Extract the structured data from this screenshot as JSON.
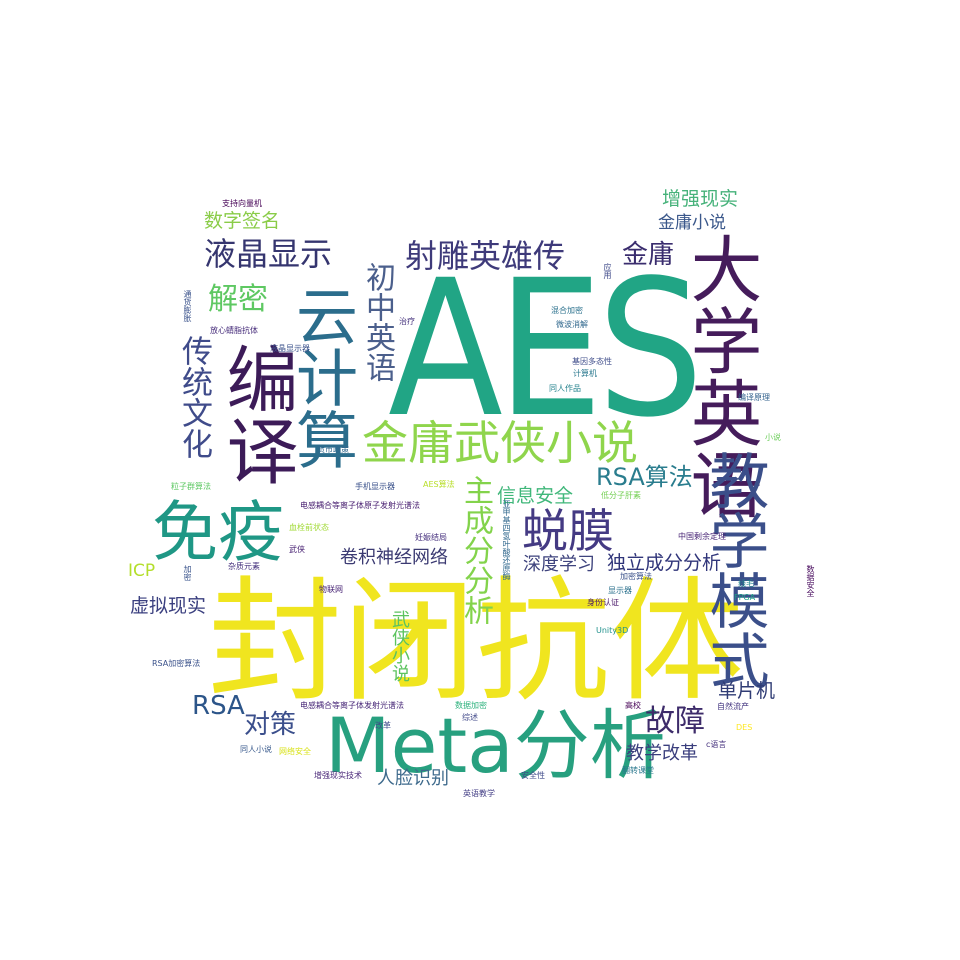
{
  "words": [
    {
      "text": "AES",
      "color": "#21a585"
    },
    {
      "text": "封闭抗体",
      "color": "#f0e51f"
    },
    {
      "text": "Meta分析",
      "color": "#27a07f"
    },
    {
      "text": "大学英语",
      "color": "#451c5b"
    },
    {
      "text": "教学模式",
      "color": "#3b4f8a"
    },
    {
      "text": "编译",
      "color": "#3c1b58"
    },
    {
      "text": "云计算",
      "color": "#2b6d8c"
    },
    {
      "text": "免疫",
      "color": "#1f9785"
    },
    {
      "text": "金庸武侠小说",
      "color": "#8fd54c"
    },
    {
      "text": "蜕膜",
      "color": "#443a83"
    },
    {
      "text": "射雕英雄传",
      "color": "#3e3a7a"
    },
    {
      "text": "液晶显示",
      "color": "#35356f"
    },
    {
      "text": "传统文化",
      "color": "#3f4b8a"
    },
    {
      "text": "初中英语",
      "color": "#4b5f8c"
    },
    {
      "text": "解密",
      "color": "#5ec862"
    },
    {
      "text": "主成分分析",
      "color": "#83d34b"
    },
    {
      "text": "故障",
      "color": "#3d2b6a"
    },
    {
      "text": "对策",
      "color": "#3b4f8c"
    },
    {
      "text": "RSA算法",
      "color": "#2a7d8e"
    },
    {
      "text": "金庸",
      "color": "#3a2d6e"
    },
    {
      "text": "增强现实",
      "color": "#46b27a"
    },
    {
      "text": "金庸小说",
      "color": "#3b588b"
    },
    {
      "text": "数字签名",
      "color": "#8acc48"
    },
    {
      "text": "RSA",
      "color": "#2c5589"
    },
    {
      "text": "卷积神经网络",
      "color": "#3b3a72"
    },
    {
      "text": "深度学习",
      "color": "#3e437d"
    },
    {
      "text": "独立成分分析",
      "color": "#30357a"
    },
    {
      "text": "信息安全",
      "color": "#40b77a"
    },
    {
      "text": "武侠小说",
      "color": "#5cc35f"
    },
    {
      "text": "虚拟现实",
      "color": "#3a3f7f"
    },
    {
      "text": "ICP",
      "color": "#b4de2c"
    },
    {
      "text": "单片机",
      "color": "#2f3b74"
    },
    {
      "text": "教学改革",
      "color": "#3a3e7d"
    },
    {
      "text": "人脸识别",
      "color": "#3e6a8c"
    },
    {
      "text": "支持向量机",
      "color": "#440154"
    },
    {
      "text": "通货膨胀",
      "color": "#3a528b"
    },
    {
      "text": "放心蜻脂抗体",
      "color": "#472d7b"
    },
    {
      "text": "液晶显示器",
      "color": "#3b528b"
    },
    {
      "text": "应用",
      "color": "#3e4989"
    },
    {
      "text": "混合加密",
      "color": "#2c728e"
    },
    {
      "text": "微波消解",
      "color": "#31688e"
    },
    {
      "text": "治疗",
      "color": "#46337e"
    },
    {
      "text": "基因多态性",
      "color": "#3e4c8a"
    },
    {
      "text": "计算机",
      "color": "#2a788e"
    },
    {
      "text": "同人作品",
      "color": "#25838e"
    },
    {
      "text": "编译原理",
      "color": "#33628d"
    },
    {
      "text": "货币政策",
      "color": "#31688e"
    },
    {
      "text": "小说",
      "color": "#6ccd5a"
    },
    {
      "text": "粒子群算法",
      "color": "#5dc863"
    },
    {
      "text": "手机显示器",
      "color": "#3b528b"
    },
    {
      "text": "AES算法",
      "color": "#b8de29"
    },
    {
      "text": "电感耦合等离子体原子发射光谱法",
      "color": "#481f70"
    },
    {
      "text": "低分子肝素",
      "color": "#75d054"
    },
    {
      "text": "血栓前状态",
      "color": "#a2da37"
    },
    {
      "text": "妊娠结局",
      "color": "#46307e"
    },
    {
      "text": "亚甲基四氢叶酸还原酶",
      "color": "#31688e"
    },
    {
      "text": "中国剩余定理",
      "color": "#482576"
    },
    {
      "text": "武侠",
      "color": "#482173"
    },
    {
      "text": "加密",
      "color": "#3a548c"
    },
    {
      "text": "杂质元素",
      "color": "#46337e"
    },
    {
      "text": "加密算法",
      "color": "#3b528b"
    },
    {
      "text": "线毛",
      "color": "#25858e"
    },
    {
      "text": "物联网",
      "color": "#482475"
    },
    {
      "text": "显示器",
      "color": "#2c728e"
    },
    {
      "text": "数据安全",
      "color": "#46085c"
    },
    {
      "text": "身份认证",
      "color": "#481668"
    },
    {
      "text": "FPGA",
      "color": "#1fa188"
    },
    {
      "text": "Unity3D",
      "color": "#21918c"
    },
    {
      "text": "RSA加密算法",
      "color": "#3b528b"
    },
    {
      "text": "电感耦合等离子体发射光谱法",
      "color": "#482878"
    },
    {
      "text": "数据加密",
      "color": "#2db27d"
    },
    {
      "text": "高校",
      "color": "#440154"
    },
    {
      "text": "自然流产",
      "color": "#453781"
    },
    {
      "text": "改革",
      "color": "#3e4a89"
    },
    {
      "text": "综述",
      "color": "#3f4788"
    },
    {
      "text": "DES",
      "color": "#fde725"
    },
    {
      "text": "同人小说",
      "color": "#38598c"
    },
    {
      "text": "网络安全",
      "color": "#d8e219"
    },
    {
      "text": "c语言",
      "color": "#46327e"
    },
    {
      "text": "翻转课堂",
      "color": "#2a788e"
    },
    {
      "text": "增强现实技术",
      "color": "#482677"
    },
    {
      "text": "安全性",
      "color": "#3e4989"
    },
    {
      "text": "英语教学",
      "color": "#433e85"
    }
  ]
}
